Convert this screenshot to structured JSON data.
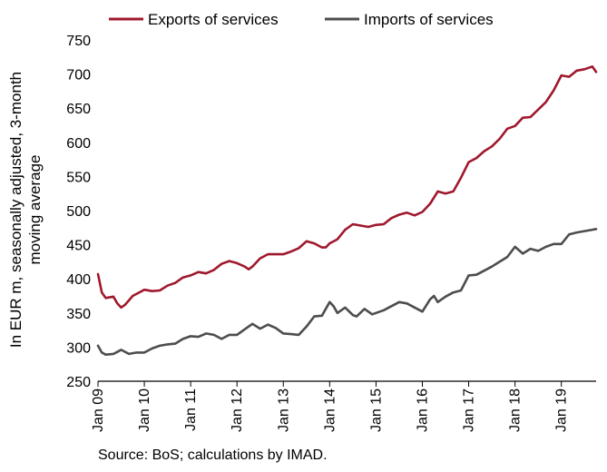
{
  "source_note": "Source: BoS; calculations by IMAD.",
  "chart_data": {
    "type": "line",
    "ylabel_lines": [
      "In EUR m, seasonally adjusted, 3-month",
      "moving average"
    ],
    "ylim": [
      250,
      750
    ],
    "yticks": [
      250,
      300,
      350,
      400,
      450,
      500,
      550,
      600,
      650,
      700,
      750
    ],
    "xlim": [
      2009.0,
      2019.75
    ],
    "xticks": [
      {
        "x": 2009,
        "label": "Jan 09"
      },
      {
        "x": 2010,
        "label": "Jan 10"
      },
      {
        "x": 2011,
        "label": "Jan 11"
      },
      {
        "x": 2012,
        "label": "Jan 12"
      },
      {
        "x": 2013,
        "label": "Jan 13"
      },
      {
        "x": 2014,
        "label": "Jan 14"
      },
      {
        "x": 2015,
        "label": "Jan 15"
      },
      {
        "x": 2016,
        "label": "Jan 16"
      },
      {
        "x": 2017,
        "label": "Jan 17"
      },
      {
        "x": 2018,
        "label": "Jan 18"
      },
      {
        "x": 2019,
        "label": "Jan 19"
      }
    ],
    "grid": false,
    "legend_position": "top",
    "series": [
      {
        "name": "Exports of services",
        "color": "#A0182D",
        "x": [
          2009.0,
          2009.083,
          2009.167,
          2009.333,
          2009.417,
          2009.5,
          2009.583,
          2009.75,
          2009.917,
          2010.0,
          2010.167,
          2010.333,
          2010.5,
          2010.667,
          2010.833,
          2011.0,
          2011.167,
          2011.333,
          2011.5,
          2011.667,
          2011.833,
          2012.0,
          2012.167,
          2012.25,
          2012.333,
          2012.5,
          2012.667,
          2012.833,
          2013.0,
          2013.167,
          2013.333,
          2013.5,
          2013.667,
          2013.833,
          2013.917,
          2014.0,
          2014.167,
          2014.333,
          2014.5,
          2014.667,
          2014.833,
          2015.0,
          2015.167,
          2015.333,
          2015.5,
          2015.667,
          2015.833,
          2016.0,
          2016.167,
          2016.333,
          2016.5,
          2016.667,
          2016.833,
          2017.0,
          2017.167,
          2017.333,
          2017.5,
          2017.667,
          2017.833,
          2018.0,
          2018.167,
          2018.333,
          2018.5,
          2018.667,
          2018.833,
          2019.0,
          2019.167,
          2019.333,
          2019.5,
          2019.667,
          2019.75
        ],
        "values": [
          407,
          380,
          372,
          374,
          364,
          358,
          362,
          375,
          381,
          384,
          382,
          383,
          390,
          394,
          402,
          405,
          410,
          408,
          413,
          422,
          426,
          423,
          418,
          414,
          418,
          430,
          436,
          436,
          436,
          440,
          445,
          455,
          452,
          446,
          446,
          452,
          458,
          472,
          480,
          478,
          476,
          479,
          480,
          489,
          494,
          497,
          493,
          498,
          510,
          528,
          525,
          528,
          548,
          571,
          577,
          587,
          594,
          605,
          620,
          624,
          636,
          637,
          648,
          659,
          676,
          698,
          696,
          705,
          707,
          711,
          703
        ]
      },
      {
        "name": "Imports of services",
        "color": "#4D4D4D",
        "x": [
          2009.0,
          2009.083,
          2009.167,
          2009.333,
          2009.417,
          2009.5,
          2009.667,
          2009.833,
          2010.0,
          2010.167,
          2010.333,
          2010.5,
          2010.667,
          2010.833,
          2011.0,
          2011.167,
          2011.333,
          2011.5,
          2011.667,
          2011.833,
          2012.0,
          2012.167,
          2012.333,
          2012.5,
          2012.667,
          2012.833,
          2013.0,
          2013.167,
          2013.333,
          2013.5,
          2013.667,
          2013.833,
          2014.0,
          2014.083,
          2014.167,
          2014.333,
          2014.5,
          2014.583,
          2014.75,
          2014.917,
          2015.0,
          2015.167,
          2015.333,
          2015.5,
          2015.667,
          2015.833,
          2016.0,
          2016.167,
          2016.25,
          2016.333,
          2016.5,
          2016.667,
          2016.833,
          2017.0,
          2017.167,
          2017.333,
          2017.5,
          2017.667,
          2017.833,
          2018.0,
          2018.167,
          2018.333,
          2018.5,
          2018.667,
          2018.833,
          2019.0,
          2019.167,
          2019.333,
          2019.5,
          2019.667,
          2019.75
        ],
        "values": [
          302,
          292,
          289,
          290,
          293,
          296,
          290,
          292,
          292,
          298,
          302,
          304,
          305,
          312,
          316,
          315,
          320,
          318,
          312,
          318,
          318,
          326,
          334,
          327,
          333,
          328,
          320,
          319,
          318,
          330,
          345,
          346,
          366,
          360,
          350,
          358,
          347,
          345,
          356,
          348,
          350,
          354,
          360,
          366,
          364,
          358,
          352,
          370,
          375,
          366,
          374,
          380,
          383,
          405,
          406,
          412,
          418,
          425,
          432,
          447,
          437,
          444,
          441,
          447,
          451,
          451,
          465,
          468,
          470,
          472,
          473
        ]
      }
    ]
  }
}
